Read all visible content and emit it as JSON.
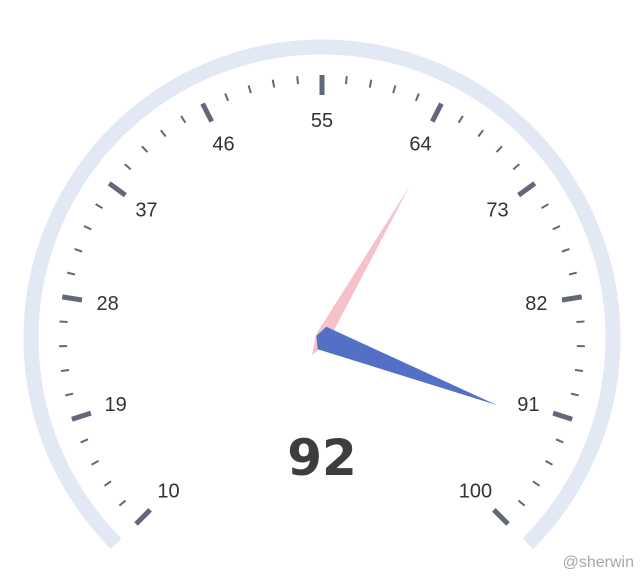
{
  "chart_data": {
    "type": "gauge",
    "min": 10,
    "max": 100,
    "start_angle_deg": 225,
    "end_angle_deg": -45,
    "value": 92,
    "value_text": "92",
    "tick_labels": [
      "10",
      "19",
      "28",
      "37",
      "46",
      "55",
      "64",
      "73",
      "82",
      "91",
      "100"
    ],
    "major_tick_count": 10,
    "minor_ticks_per_major": 5,
    "pointers": [
      {
        "name": "value-pointer",
        "value": 92,
        "color": "#5470c6"
      },
      {
        "name": "secondary-pointer",
        "value": 65,
        "color": "#f5c2cc"
      }
    ],
    "colors": {
      "track": "#e3e8f5",
      "tick": "#63677a",
      "label": "#333333",
      "value_text": "#3d3d3d"
    }
  },
  "watermark": "@sherwin"
}
